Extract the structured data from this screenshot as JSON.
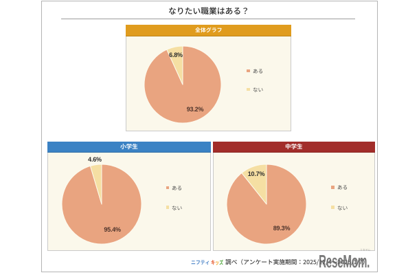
{
  "title": "なりたい職業はある？",
  "chart_data": [
    {
      "type": "pie",
      "title": "全体グラフ",
      "labels": [
        "ある",
        "ない"
      ],
      "values": [
        93.2,
        6.8
      ],
      "value_labels": [
        "93.2%",
        "6.8%"
      ],
      "unit": "%",
      "colors": [
        "#E9A480",
        "#F5DFA3"
      ],
      "header_color": "#E09C1E",
      "legend_position": "right",
      "start_angle": 0,
      "direction": "clockwise"
    },
    {
      "type": "pie",
      "title": "小学生",
      "labels": [
        "ある",
        "ない"
      ],
      "values": [
        95.4,
        4.6
      ],
      "value_labels": [
        "95.4%",
        "4.6%"
      ],
      "unit": "%",
      "colors": [
        "#E9A480",
        "#F5DFA3"
      ],
      "header_color": "#3B82C4",
      "legend_position": "right",
      "start_angle": 0,
      "direction": "clockwise"
    },
    {
      "type": "pie",
      "title": "中学生",
      "labels": [
        "ある",
        "ない"
      ],
      "values": [
        89.3,
        10.7
      ],
      "value_labels": [
        "89.3%",
        "10.7%"
      ],
      "unit": "%",
      "colors": [
        "#E9A480",
        "#F5DFA3"
      ],
      "header_color": "#A22D2A",
      "legend_position": "right",
      "start_angle": 0,
      "direction": "clockwise"
    }
  ],
  "slice_border_color": "#FDFAEE",
  "footer": {
    "brand_nifty": "ニフティ",
    "brand_kids": "キッズ",
    "note": "調べ（アンケート実施期間：2025/12/4～2025/1/7）"
  },
  "watermark": {
    "text": "ReseMom.",
    "ruby": "リセマム"
  }
}
